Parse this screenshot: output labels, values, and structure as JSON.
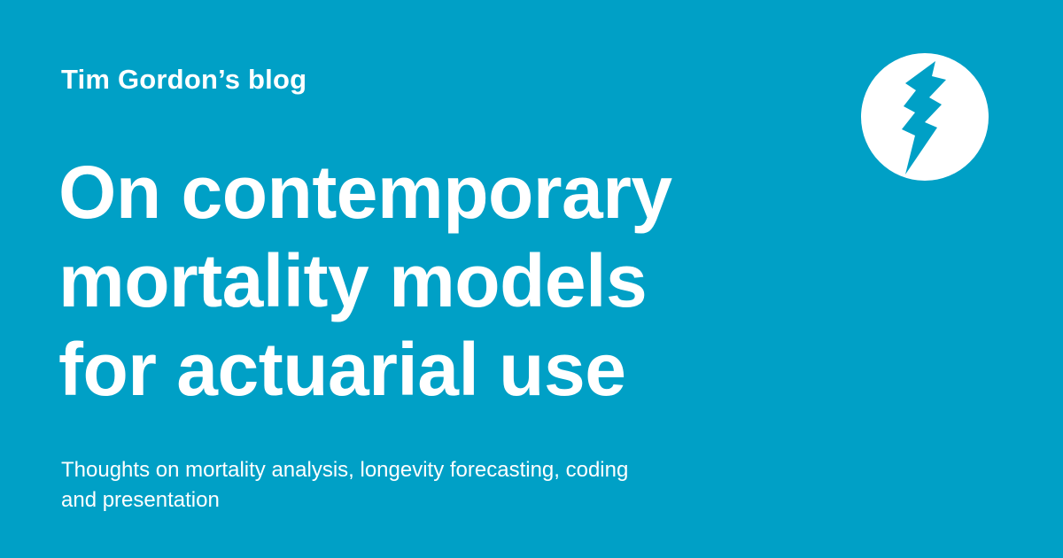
{
  "blog": {
    "name": "Tim Gordon’s blog"
  },
  "post": {
    "title_lines": [
      "On contemporary",
      "mortality models",
      "for actuarial use"
    ]
  },
  "tagline": {
    "line1": "Thoughts on mortality analysis, longevity forecasting, coding",
    "line2": "and presentation"
  },
  "logo": {
    "icon": "lightning-bolt-icon"
  },
  "colors": {
    "background": "#00A0C6",
    "text": "#FFFFFF",
    "logo_circle": "#FFFFFF",
    "logo_bolt": "#00A0C6"
  }
}
